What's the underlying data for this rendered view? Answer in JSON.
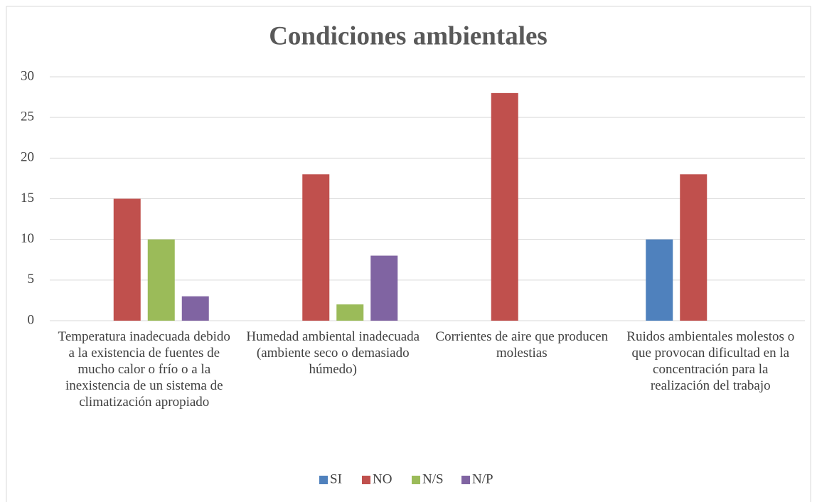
{
  "chart_data": {
    "type": "bar",
    "title": "Condiciones ambientales",
    "categories": [
      "Temperatura inadecuada debido a la existencia de fuentes de mucho calor o frío o a la inexistencia de un sistema de climatización apropiado",
      "Humedad ambiental inadecuada (ambiente seco o demasiado húmedo)",
      "Corrientes de aire que producen molestias",
      "Ruidos ambientales molestos o que provocan dificultad en la concentración para la realización del trabajo"
    ],
    "series": [
      {
        "name": "SI",
        "color": "#4f81bd",
        "values": [
          0,
          0,
          0,
          10
        ]
      },
      {
        "name": "NO",
        "color": "#c0504d",
        "values": [
          15,
          18,
          28,
          18
        ]
      },
      {
        "name": "N/S",
        "color": "#9bbb59",
        "values": [
          10,
          2,
          0,
          0
        ]
      },
      {
        "name": "N/P",
        "color": "#8064a2",
        "values": [
          3,
          8,
          0,
          0
        ]
      }
    ],
    "ylim": [
      0,
      30
    ],
    "yticks": [
      0,
      5,
      10,
      15,
      20,
      25,
      30
    ],
    "grid": true,
    "legend": "bottom"
  }
}
